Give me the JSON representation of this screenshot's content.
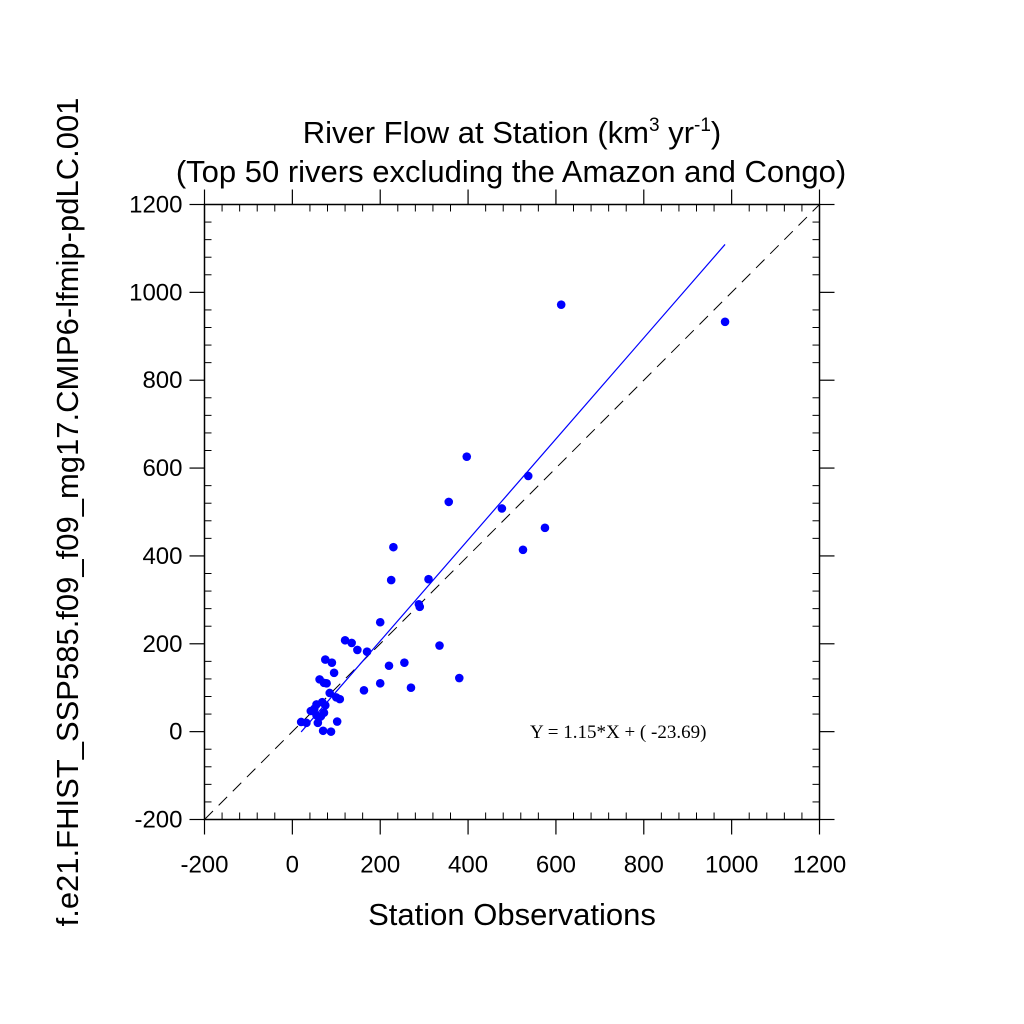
{
  "chart_data": {
    "type": "scatter",
    "title_prefix": "River Flow at Station (km",
    "title_sup1": "3",
    "title_mid": " yr",
    "title_sup2": "-1",
    "title_suffix": ")",
    "subtitle": "(Top 50 rivers excluding the Amazon and Congo)",
    "xlabel": "Station Observations",
    "ylabel": "f.e21.FHIST_SSP585.f09_f09_mg17.CMIP6-lfmip-pdLC.001",
    "xlim": [
      -200,
      1200
    ],
    "ylim": [
      -200,
      1200
    ],
    "major_ticks": [
      -200,
      0,
      200,
      400,
      600,
      800,
      1000,
      1200
    ],
    "minor_step": 40,
    "tick_labels": [
      "-200",
      "0",
      "200",
      "400",
      "600",
      "800",
      "1000",
      "1200"
    ],
    "marker_color": "#0000ff",
    "fit_color": "#0000ff",
    "reference_color": "#000000",
    "fit": {
      "slope": 1.15,
      "intercept": -23.69,
      "x_range": [
        20,
        985
      ]
    },
    "equation_label": "Y =  1.15*X + (  -23.69)",
    "reference_line": {
      "type": "1:1",
      "style": "dashed"
    },
    "points": [
      [
        985,
        933
      ],
      [
        612,
        972
      ],
      [
        397,
        626
      ],
      [
        537,
        582
      ],
      [
        575,
        464
      ],
      [
        477,
        508
      ],
      [
        525,
        414
      ],
      [
        356,
        523
      ],
      [
        230,
        420
      ],
      [
        225,
        345
      ],
      [
        310,
        347
      ],
      [
        288,
        290
      ],
      [
        290,
        284
      ],
      [
        200,
        249
      ],
      [
        335,
        196
      ],
      [
        380,
        122
      ],
      [
        270,
        100
      ],
      [
        255,
        157
      ],
      [
        220,
        150
      ],
      [
        200,
        110
      ],
      [
        163,
        94
      ],
      [
        170,
        182
      ],
      [
        148,
        186
      ],
      [
        135,
        202
      ],
      [
        120,
        208
      ],
      [
        90,
        157
      ],
      [
        75,
        164
      ],
      [
        95,
        134
      ],
      [
        62,
        119
      ],
      [
        72,
        111
      ],
      [
        78,
        110
      ],
      [
        85,
        88
      ],
      [
        100,
        78
      ],
      [
        108,
        74
      ],
      [
        68,
        67
      ],
      [
        55,
        62
      ],
      [
        75,
        60
      ],
      [
        42,
        47
      ],
      [
        72,
        43
      ],
      [
        55,
        37
      ],
      [
        62,
        33
      ],
      [
        58,
        20
      ],
      [
        32,
        20
      ],
      [
        20,
        22
      ],
      [
        102,
        23
      ],
      [
        70,
        2
      ],
      [
        88,
        0
      ],
      [
        48,
        47
      ],
      [
        65,
        35
      ],
      [
        50,
        52
      ]
    ]
  }
}
